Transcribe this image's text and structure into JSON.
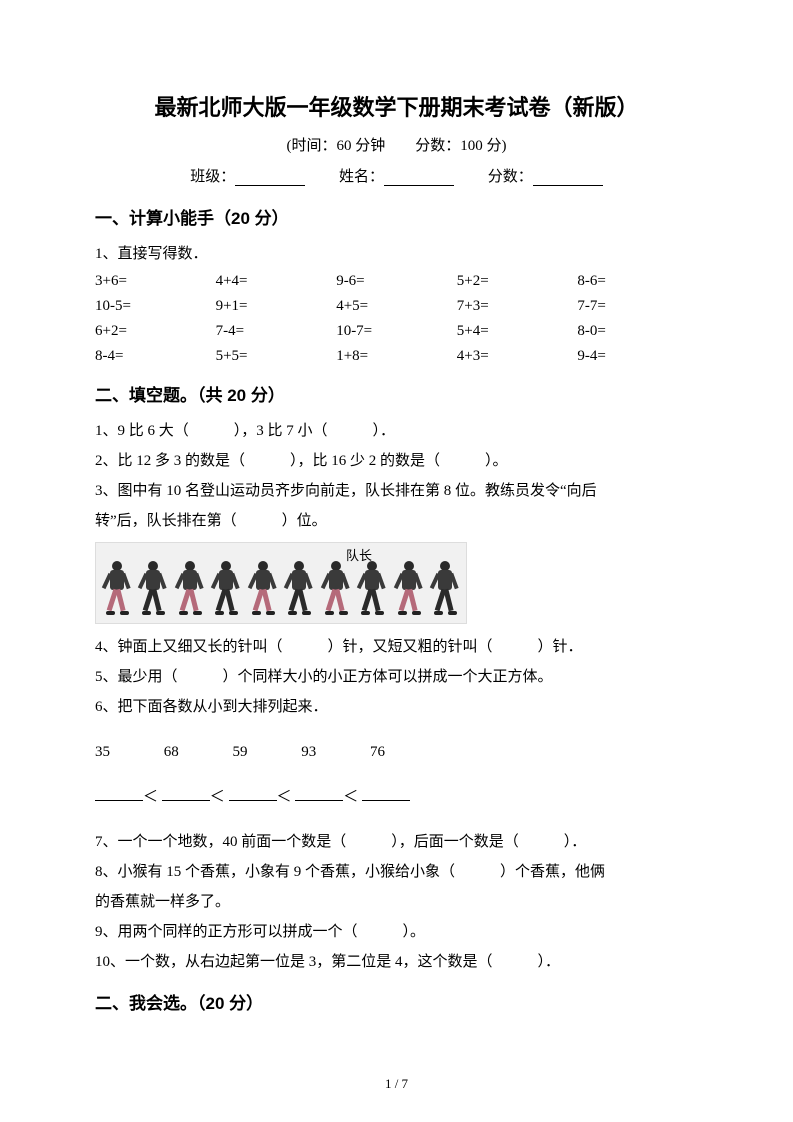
{
  "title": "最新北师大版一年级数学下册期末考试卷（新版）",
  "subtitle": "(时间：60 分钟　　分数：100 分)",
  "info": {
    "class_label": "班级：",
    "name_label": "姓名：",
    "score_label": "分数："
  },
  "section1": {
    "heading": "一、计算小能手（20 分）",
    "q1_label": "1、直接写得数．",
    "rows": [
      [
        "3+6=",
        "4+4=",
        "9-6=",
        "5+2=",
        "8-6="
      ],
      [
        "10-5=",
        "9+1=",
        "4+5=",
        "7+3=",
        "7-7="
      ],
      [
        "6+2=",
        "7-4=",
        "10-7=",
        "5+4=",
        "8-0="
      ],
      [
        "8-4=",
        "5+5=",
        "1+8=",
        "4+3=",
        "9-4="
      ]
    ]
  },
  "section2": {
    "heading": "二、填空题。（共 20 分）",
    "q1": "1、9 比 6 大（　　　），3 比 7 小（　　　）．",
    "q2": "2、比 12 多 3 的数是（　　　），比 16 少 2 的数是（　　　）。",
    "q3a": "3、图中有 10 名登山运动员齐步向前走，队长排在第 8 位。教练员发令“向后",
    "q3b": "转”后，队长排在第（　　　）位。",
    "figure_label": "队长",
    "q4": "4、钟面上又细又长的针叫（　　　）针，又短又粗的针叫（　　　）针．",
    "q5": "5、最少用（　　　）个同样大小的小正方体可以拼成一个大正方体。",
    "q6": "6、把下面各数从小到大排列起来．",
    "q6_numbers": [
      "35",
      "68",
      "59",
      "93",
      "76"
    ],
    "lt": "＜",
    "q7": "7、一个一个地数，40 前面一个数是（　　　），后面一个数是（　　　）．",
    "q8a": "8、小猴有 15 个香蕉，小象有 9 个香蕉，小猴给小象（　　　）个香蕉，他俩",
    "q8b": "的香蕉就一样多了。",
    "q9": "9、用两个同样的正方形可以拼成一个（　　　）。",
    "q10": "10、一个数，从右边起第一位是 3，第二位是 4，这个数是（　　　）．"
  },
  "section3": {
    "heading": "二、我会选。（20 分）"
  },
  "page_num": "1 / 7",
  "figure_people": [
    "pink",
    "dark",
    "pink",
    "dark",
    "pink",
    "dark",
    "pink",
    "dark",
    "pink",
    "dark"
  ]
}
